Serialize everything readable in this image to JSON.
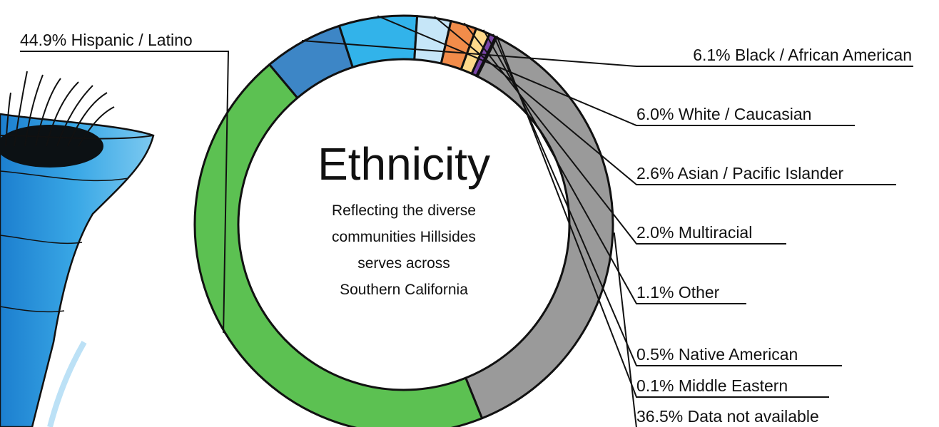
{
  "chart_data": {
    "type": "pie",
    "title": "Ethnicity",
    "subtitle_lines": [
      "Reflecting the diverse",
      "communities Hillsides",
      "serves across",
      "Southern California"
    ],
    "labels": [
      "44.9% Hispanic / Latino",
      "6.1% Black / African American",
      "6.0% White / Caucasian",
      "2.6% Asian / Pacific Islander",
      "2.0% Multiracial",
      "1.1% Other",
      "0.5% Native American",
      "0.1% Middle Eastern",
      "36.5% Data not available"
    ],
    "values": [
      44.9,
      6.1,
      6.0,
      2.6,
      2.0,
      1.1,
      0.5,
      0.1,
      36.5
    ],
    "colors": [
      "#5cc152",
      "#3d86c6",
      "#32b3ea",
      "#c6e6f8",
      "#f28c4a",
      "#ffd98a",
      "#7a45a8",
      "#d6dfea",
      "#9a9a9a"
    ]
  },
  "illustration": {
    "icon": "tornado-icon"
  }
}
